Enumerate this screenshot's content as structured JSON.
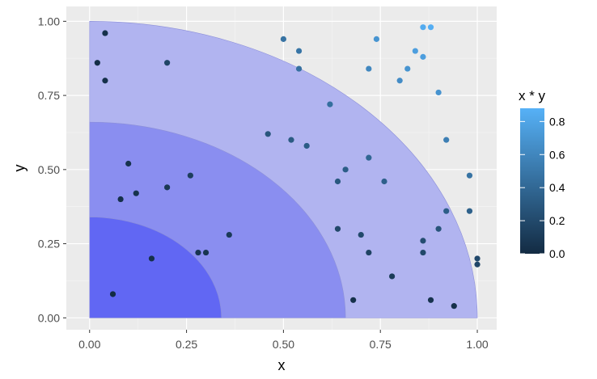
{
  "chart_data": {
    "type": "scatter",
    "xlabel": "x",
    "ylabel": "y",
    "xlim": [
      -0.06,
      1.05
    ],
    "ylim": [
      -0.04,
      1.05
    ],
    "x_ticks": [
      0,
      0.25,
      0.5,
      0.75,
      1
    ],
    "x_tick_labels": [
      "0.00",
      "0.25",
      "0.50",
      "0.75",
      "1.00"
    ],
    "y_ticks": [
      0,
      0.25,
      0.5,
      0.75,
      1
    ],
    "y_tick_labels": [
      "0.00",
      "0.25",
      "0.50",
      "0.75",
      "1.00"
    ],
    "grid": true,
    "background_color": "#ebebeb",
    "quarter_circles": [
      {
        "radius": 1.0,
        "color": "#b1b4f0"
      },
      {
        "radius": 0.66,
        "color": "#8a8ef0"
      },
      {
        "radius": 0.34,
        "color": "#6167f3"
      }
    ],
    "legend": {
      "title": "x * y",
      "position": "right",
      "range": [
        0,
        0.88
      ],
      "ticks": [
        0,
        0.2,
        0.4,
        0.6,
        0.8
      ],
      "tick_labels": [
        "0.0",
        "0.2",
        "0.4",
        "0.6",
        "0.8"
      ],
      "color_low": "#132b43",
      "color_high": "#56b1f7"
    },
    "points": [
      {
        "x": 0.02,
        "y": 0.86
      },
      {
        "x": 0.04,
        "y": 0.96
      },
      {
        "x": 0.04,
        "y": 0.8
      },
      {
        "x": 0.2,
        "y": 0.86
      },
      {
        "x": 0.06,
        "y": 0.08
      },
      {
        "x": 0.08,
        "y": 0.4
      },
      {
        "x": 0.1,
        "y": 0.52
      },
      {
        "x": 0.12,
        "y": 0.42
      },
      {
        "x": 0.16,
        "y": 0.2
      },
      {
        "x": 0.2,
        "y": 0.44
      },
      {
        "x": 0.26,
        "y": 0.48
      },
      {
        "x": 0.28,
        "y": 0.22
      },
      {
        "x": 0.3,
        "y": 0.22
      },
      {
        "x": 0.36,
        "y": 0.28
      },
      {
        "x": 0.46,
        "y": 0.62
      },
      {
        "x": 0.5,
        "y": 0.94
      },
      {
        "x": 0.52,
        "y": 0.6
      },
      {
        "x": 0.54,
        "y": 0.9
      },
      {
        "x": 0.54,
        "y": 0.84
      },
      {
        "x": 0.56,
        "y": 0.58
      },
      {
        "x": 0.62,
        "y": 0.72
      },
      {
        "x": 0.64,
        "y": 0.46
      },
      {
        "x": 0.64,
        "y": 0.3
      },
      {
        "x": 0.66,
        "y": 0.5
      },
      {
        "x": 0.68,
        "y": 0.06
      },
      {
        "x": 0.7,
        "y": 0.28
      },
      {
        "x": 0.72,
        "y": 0.84
      },
      {
        "x": 0.72,
        "y": 0.54
      },
      {
        "x": 0.72,
        "y": 0.22
      },
      {
        "x": 0.74,
        "y": 0.94
      },
      {
        "x": 0.76,
        "y": 0.46
      },
      {
        "x": 0.78,
        "y": 0.14
      },
      {
        "x": 0.8,
        "y": 0.8
      },
      {
        "x": 0.82,
        "y": 0.84
      },
      {
        "x": 0.84,
        "y": 0.9
      },
      {
        "x": 0.86,
        "y": 0.98
      },
      {
        "x": 0.86,
        "y": 0.88
      },
      {
        "x": 0.86,
        "y": 0.26
      },
      {
        "x": 0.86,
        "y": 0.22
      },
      {
        "x": 0.88,
        "y": 0.98
      },
      {
        "x": 0.88,
        "y": 0.06
      },
      {
        "x": 0.9,
        "y": 0.76
      },
      {
        "x": 0.9,
        "y": 0.3
      },
      {
        "x": 0.92,
        "y": 0.6
      },
      {
        "x": 0.92,
        "y": 0.36
      },
      {
        "x": 0.94,
        "y": 0.04
      },
      {
        "x": 0.98,
        "y": 0.48
      },
      {
        "x": 0.98,
        "y": 0.36
      },
      {
        "x": 1.0,
        "y": 0.2
      },
      {
        "x": 1.0,
        "y": 0.18
      }
    ]
  }
}
